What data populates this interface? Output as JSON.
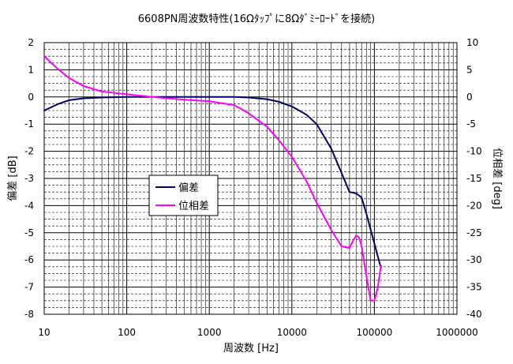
{
  "chart_data": {
    "type": "line",
    "title": "6608PN周波数特性(16Ωﾀｯﾌﾟに8Ωﾀﾞﾐｰﾛｰﾄﾞを接続)",
    "xlabel": "周波数 [Hz]",
    "ylabel_left": "偏差 [dB]",
    "ylabel_right": "位相差 [deg]",
    "x_scale": "log",
    "xlim": [
      10,
      1000000
    ],
    "ylim_left": [
      -8,
      2
    ],
    "ylim_right": [
      -40,
      10
    ],
    "x_ticks": [
      "10",
      "100",
      "1000",
      "10000",
      "100000",
      "1000000"
    ],
    "y_ticks_left": [
      "2",
      "1",
      "0",
      "-1",
      "-2",
      "-3",
      "-4",
      "-5",
      "-6",
      "-7",
      "-8"
    ],
    "y_ticks_right": [
      "10",
      "5",
      "0",
      "-5",
      "-10",
      "-15",
      "-20",
      "-25",
      "-30",
      "-35",
      "-40"
    ],
    "grid": true,
    "legend_position": "center-left",
    "series": [
      {
        "name": "偏差",
        "axis": "left",
        "color": "#000066",
        "x": [
          10,
          15,
          20,
          30,
          50,
          100,
          200,
          500,
          1000,
          2000,
          3000,
          5000,
          7000,
          10000,
          15000,
          20000,
          30000,
          40000,
          50000,
          60000,
          70000,
          80000,
          100000,
          120000
        ],
        "y": [
          -0.5,
          -0.25,
          -0.12,
          -0.05,
          -0.02,
          0,
          0,
          0,
          0,
          0,
          -0.02,
          -0.08,
          -0.18,
          -0.35,
          -0.65,
          -1.0,
          -1.9,
          -2.8,
          -3.5,
          -3.55,
          -3.7,
          -4.3,
          -5.4,
          -6.3
        ]
      },
      {
        "name": "位相差",
        "axis": "right",
        "color": "#ff00ff",
        "x": [
          10,
          15,
          20,
          30,
          50,
          100,
          200,
          500,
          1000,
          2000,
          3000,
          5000,
          7000,
          10000,
          15000,
          20000,
          30000,
          40000,
          50000,
          55000,
          60000,
          65000,
          70000,
          80000,
          90000,
          100000,
          110000,
          120000
        ],
        "y": [
          7.5,
          5,
          3.5,
          2,
          1,
          0.5,
          0,
          -0.5,
          -0.8,
          -1.5,
          -3,
          -5.5,
          -8,
          -11,
          -15.5,
          -19.5,
          -24.5,
          -27.5,
          -27.8,
          -26.5,
          -25.5,
          -25.8,
          -27.5,
          -33,
          -37.5,
          -37.5,
          -35,
          -31
        ]
      }
    ]
  }
}
